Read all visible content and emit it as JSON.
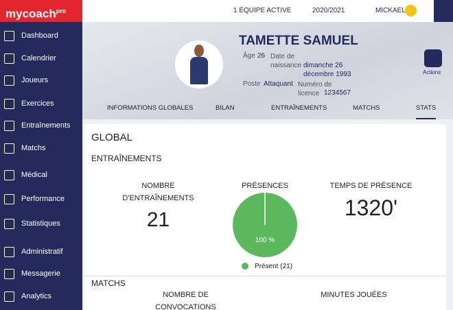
{
  "brand": {
    "name": "mycoach",
    "suffix": "pro"
  },
  "nav": [
    "Dashboard",
    "Calendrier",
    "Joueurs",
    "Exercices",
    "Entraînements",
    "Matchs",
    "Médical",
    "Performance",
    "Statistiques",
    "Administratif",
    "Messagerie",
    "Analytics"
  ],
  "topbar": {
    "team": "1 ÉQUIPE ACTIVE",
    "season": "2020/2021",
    "user": "MICKAEL"
  },
  "profile": {
    "name": "TAMETTE SAMUEL",
    "age_label": "Âge",
    "age": "26",
    "birth_label": "Date de naissance",
    "birth": "dimanche 26 décembre 1993",
    "position_label": "Poste",
    "position": "Attaquant",
    "licence_label": "Numéro de licence",
    "licence": "1234567",
    "actions": "Actions"
  },
  "tabs": [
    "INFORMATIONS GLOBALES",
    "BILAN",
    "ENTRAÎNEMENTS",
    "MATCHS",
    "STATS"
  ],
  "content": {
    "title": "GLOBAL",
    "trainings": {
      "title": "ENTRAÎNEMENTS",
      "count_label": "NOMBRE D'ENTRAÎNEMENTS",
      "count": "21",
      "presence_title": "PRÉSENCES",
      "time_label": "TEMPS DE PRÉSENCE",
      "time": "1320'"
    },
    "matches": {
      "title": "MATCHS",
      "convocations_label": "NOMBRE DE CONVOCATIONS",
      "minutes_label": "MINUTES JOUÉES"
    }
  },
  "chart_data": {
    "type": "pie",
    "categories": [
      "Présent (21)"
    ],
    "values": [
      100
    ],
    "value_labels": [
      "100 %"
    ],
    "colors": [
      "#5cb85c"
    ]
  }
}
